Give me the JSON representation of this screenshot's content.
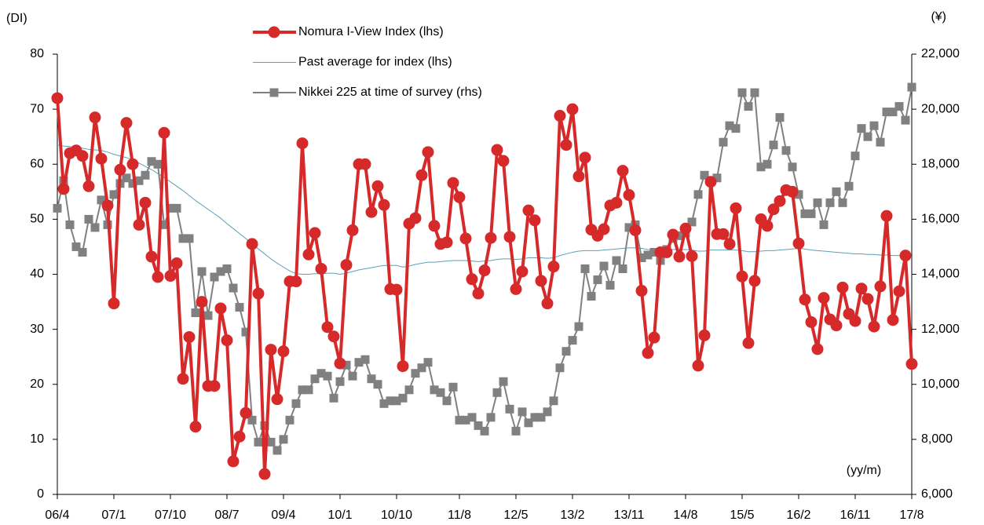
{
  "chart_data": {
    "type": "line",
    "y_label": "(DI)",
    "y2_label": "(¥)",
    "x_label": "(yy/m)",
    "legend": "top",
    "categories": [
      "06/4",
      null,
      null,
      null,
      null,
      null,
      null,
      null,
      null,
      "07/1",
      null,
      null,
      null,
      null,
      null,
      null,
      null,
      null,
      "07/10",
      null,
      null,
      null,
      null,
      null,
      null,
      null,
      null,
      "08/7",
      null,
      null,
      null,
      null,
      null,
      null,
      null,
      null,
      "09/4",
      null,
      null,
      null,
      null,
      null,
      null,
      null,
      null,
      "10/1",
      null,
      null,
      null,
      null,
      null,
      null,
      null,
      null,
      "10/10",
      null,
      null,
      null,
      null,
      null,
      null,
      null,
      null,
      null,
      "11/8",
      null,
      null,
      null,
      null,
      null,
      null,
      null,
      null,
      "12/5",
      null,
      null,
      null,
      null,
      null,
      null,
      null,
      null,
      "13/2",
      null,
      null,
      null,
      null,
      null,
      null,
      null,
      null,
      "13/11",
      null,
      null,
      null,
      null,
      null,
      null,
      null,
      null,
      "14/8",
      null,
      null,
      null,
      null,
      null,
      null,
      null,
      null,
      "15/5",
      null,
      null,
      null,
      null,
      null,
      null,
      null,
      null,
      "16/2",
      null,
      null,
      null,
      null,
      null,
      null,
      null,
      null,
      "16/11",
      null,
      null,
      null,
      null,
      null,
      null,
      null,
      null,
      "17/8"
    ],
    "series": [
      {
        "name": "Nomura I-View Index (lhs)",
        "color": "#d62a2a",
        "marker": "circle",
        "axis": "y",
        "values": [
          72,
          55.5,
          62,
          62.5,
          61.5,
          56,
          68.5,
          61,
          52.5,
          34.7,
          59,
          67.5,
          60,
          49,
          53,
          43.2,
          39.5,
          65.7,
          39.7,
          42,
          21,
          28.6,
          12.3,
          35,
          19.7,
          19.7,
          33.8,
          28,
          6,
          10.5,
          14.8,
          45.5,
          36.5,
          3.7,
          26.3,
          17.3,
          26,
          38.7,
          38.7,
          63.8,
          43.6,
          47.5,
          41,
          30.4,
          28.7,
          23.8,
          41.7,
          48,
          60,
          60,
          51.3,
          56,
          52.6,
          37.3,
          37.2,
          23.3,
          49.2,
          50.2,
          58,
          62.2,
          48.8,
          45.5,
          45.8,
          56.6,
          54,
          46.5,
          39.1,
          36.5,
          40.7,
          46.6,
          62.6,
          60.6,
          46.8,
          37.3,
          40.5,
          51.6,
          49.8,
          38.8,
          34.7,
          41.4,
          68.8,
          63.5,
          70,
          57.8,
          61.2,
          48.1,
          47,
          48.2,
          52.5,
          53,
          58.8,
          54.4,
          48,
          37,
          25.7,
          28.5,
          44,
          44,
          47.2,
          43.2,
          48.3,
          43.3,
          23.4,
          28.9,
          56.8,
          47.3,
          47.3,
          45.5,
          52,
          39.6,
          27.5,
          38.8,
          50,
          48.8,
          51.8,
          53.3,
          55.3,
          55,
          45.6,
          35.4,
          31.3,
          26.4,
          35.7,
          31.8,
          30.7,
          37.6,
          32.8,
          31.5,
          37.4,
          35.5,
          30.5,
          37.8,
          50.6,
          31.7,
          36.9,
          43.4,
          23.7
        ]
      },
      {
        "name": "Past average for index (lhs)",
        "color": "#5e9fb5",
        "marker": "none",
        "axis": "y",
        "values": [
          63.5,
          63.3,
          63.2,
          63,
          62.9,
          62.7,
          62.6,
          62.5,
          62.2,
          61.8,
          61.5,
          61.2,
          60.8,
          60.2,
          59.6,
          59,
          58.3,
          57.6,
          56.8,
          56,
          55.2,
          54.3,
          53.4,
          52.6,
          51.8,
          51,
          50.2,
          49.2,
          48.3,
          47.4,
          46.5,
          45.6,
          44.6,
          43.7,
          42.8,
          42,
          41.3,
          40.6,
          40.1,
          40,
          40,
          40.1,
          40.1,
          40.2,
          40.2,
          40,
          40.2,
          40.5,
          40.8,
          41,
          41.2,
          41.4,
          41.6,
          41.6,
          41.6,
          41.3,
          41.5,
          41.8,
          42,
          42.2,
          42.2,
          42.3,
          42.4,
          42.5,
          42.5,
          42.5,
          42.4,
          42.3,
          42.4,
          42.5,
          42.7,
          42.8,
          42.8,
          42.7,
          42.8,
          43,
          43,
          43,
          42.9,
          43,
          43.4,
          43.7,
          44,
          44.2,
          44.3,
          44.3,
          44.3,
          44.4,
          44.5,
          44.6,
          44.7,
          44.8,
          44.8,
          44.7,
          44.5,
          44.4,
          44.4,
          44.4,
          44.5,
          44.5,
          44.5,
          44.4,
          44.2,
          44.2,
          44.4,
          44.4,
          44.4,
          44.4,
          44.4,
          44.3,
          44.1,
          44.1,
          44.2,
          44.3,
          44.3,
          44.4,
          44.5,
          44.6,
          44.7,
          44.6,
          44.4,
          44.3,
          44.2,
          44.1,
          44,
          43.9,
          43.8,
          43.7,
          43.7,
          43.6,
          43.6,
          43.5,
          43.5,
          43.4,
          43.4,
          43.3,
          43.3
        ]
      },
      {
        "name": "Nikkei 225 at time of survey (rhs)",
        "color": "#808080",
        "marker": "square",
        "axis": "y2",
        "values": [
          16400,
          17400,
          15800,
          15000,
          14800,
          16000,
          15700,
          16700,
          15800,
          16900,
          17300,
          17500,
          17300,
          17400,
          17600,
          18100,
          18000,
          15800,
          16400,
          16400,
          15300,
          15300,
          12600,
          14100,
          12500,
          13900,
          14100,
          14200,
          13500,
          12800,
          11900,
          8700,
          7900,
          8500,
          7900,
          7600,
          8000,
          8700,
          9300,
          9800,
          9800,
          10200,
          10400,
          10300,
          9500,
          10100,
          10700,
          10300,
          10800,
          10900,
          10200,
          10000,
          9300,
          9400,
          9400,
          9500,
          9800,
          10400,
          10600,
          10800,
          9800,
          9700,
          9400,
          9900,
          8700,
          8700,
          8800,
          8500,
          8300,
          8800,
          9700,
          10100,
          9100,
          8300,
          9000,
          8600,
          8800,
          8800,
          9000,
          9400,
          10600,
          11200,
          11600,
          12100,
          14200,
          13200,
          13800,
          14300,
          13600,
          14500,
          14200,
          15700,
          15800,
          14600,
          14700,
          14800,
          14500,
          14900,
          15300,
          15400,
          15500,
          15900,
          16900,
          17600,
          17400,
          17500,
          18800,
          19400,
          19300,
          20600,
          20100,
          20600,
          17900,
          18000,
          18700,
          19700,
          18500,
          17900,
          16900,
          16200,
          16200,
          16600,
          15800,
          16600,
          17000,
          16600,
          17200,
          18300,
          19300,
          19000,
          19400,
          18800,
          19900,
          19900,
          20100,
          19600,
          20800
        ]
      }
    ],
    "ylim": [
      0,
      80
    ],
    "yticks": [
      0,
      10,
      20,
      30,
      40,
      50,
      60,
      70,
      80
    ],
    "y2lim": [
      6000,
      22000
    ],
    "y2ticks": [
      {
        "value": 6000,
        "label": "6,000"
      },
      {
        "value": 8000,
        "label": "8,000"
      },
      {
        "value": 10000,
        "label": "10,000"
      },
      {
        "value": 12000,
        "label": "12,000"
      },
      {
        "value": 14000,
        "label": "14,000"
      },
      {
        "value": 16000,
        "label": "16,000"
      },
      {
        "value": 18000,
        "label": "18,000"
      },
      {
        "value": 20000,
        "label": "20,000"
      },
      {
        "value": 22000,
        "label": "22,000"
      }
    ]
  }
}
